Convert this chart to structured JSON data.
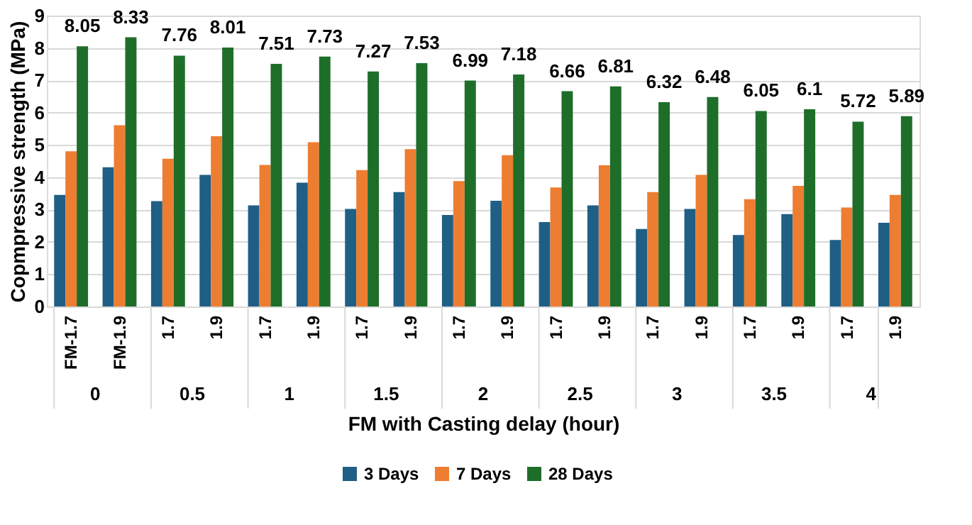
{
  "chart_data": {
    "type": "bar",
    "xlabel": "FM with Casting delay (hour)",
    "ylabel": "Copmpressive strength (MPa)",
    "categories": [
      "FM-1.7",
      "FM-1.9",
      "1.7",
      "1.9",
      "1.7",
      "1.9",
      "1.7",
      "1.9",
      "1.7",
      "1.9",
      "1.7",
      "1.9",
      "1.7",
      "1.9",
      "1.7",
      "1.9",
      "1.7",
      "1.9"
    ],
    "annotations": [
      "0",
      "0.5",
      "1",
      "1.5",
      "2",
      "2.5",
      "3",
      "3.5",
      "4"
    ],
    "series": [
      {
        "name": "3 Days",
        "color": "#1f5f85",
        "values": [
          3.45,
          4.31,
          3.26,
          4.07,
          3.13,
          3.83,
          3.02,
          3.54,
          2.83,
          3.27,
          2.61,
          3.13,
          2.4,
          3.02,
          2.21,
          2.86,
          2.06,
          2.59
        ]
      },
      {
        "name": "7 Days",
        "color": "#ed7d31",
        "values": [
          4.8,
          5.61,
          4.57,
          5.27,
          4.38,
          5.08,
          4.22,
          4.87,
          3.88,
          4.68,
          3.68,
          4.37,
          3.54,
          4.07,
          3.32,
          3.73,
          3.06,
          3.45
        ]
      },
      {
        "name": "28 Days",
        "color": "#1e6e2a",
        "values": [
          8.05,
          8.33,
          7.76,
          8.01,
          7.51,
          7.73,
          7.27,
          7.53,
          6.99,
          7.18,
          6.66,
          6.81,
          6.32,
          6.48,
          6.05,
          6.1,
          5.72,
          5.89
        ],
        "value_labels": [
          "8.05",
          "8.33",
          "7.76",
          "8.01",
          "7.51",
          "7.73",
          "7.27",
          "7.53",
          "6.99",
          "7.18",
          "6.66",
          "6.81",
          "6.32",
          "6.48",
          "6.05",
          "6.1",
          "5.72",
          "5.89"
        ]
      }
    ],
    "ylim": [
      0,
      9
    ],
    "yticks": [
      0,
      1,
      2,
      3,
      4,
      5,
      6,
      7,
      8,
      9
    ],
    "grid": "y",
    "legend": "bottom"
  }
}
